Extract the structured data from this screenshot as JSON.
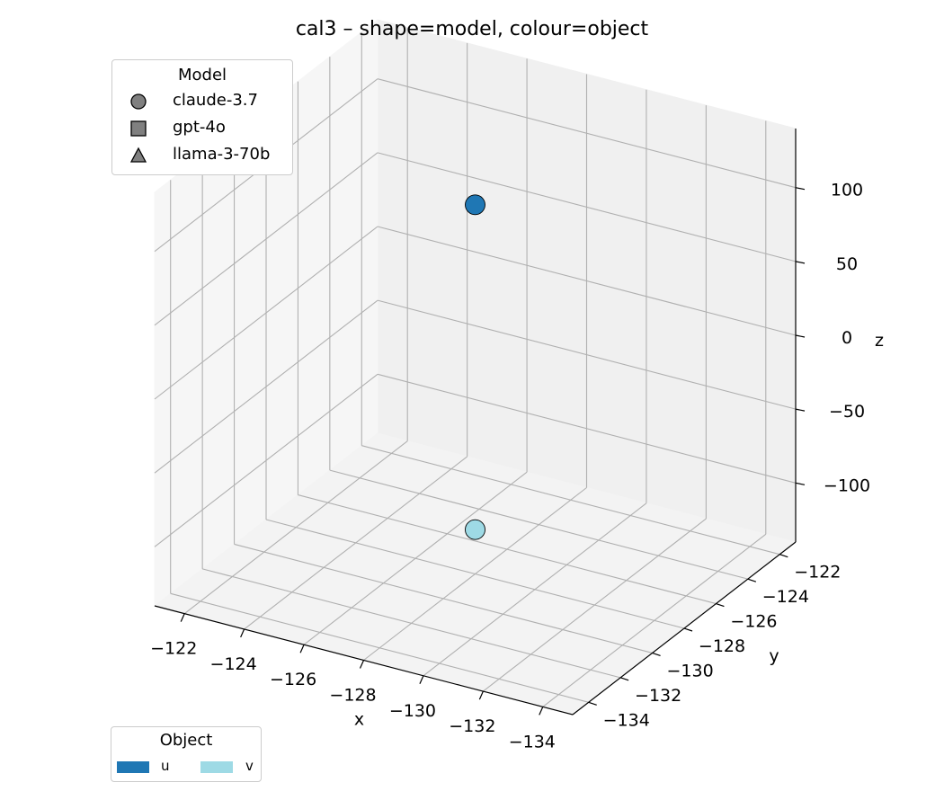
{
  "title": "cal3 – shape=model, colour=object",
  "model_legend": {
    "title": "Model",
    "items": [
      {
        "label": "claude-3.7",
        "marker": "circle"
      },
      {
        "label": "gpt-4o",
        "marker": "square"
      },
      {
        "label": "llama-3-70b",
        "marker": "triangle"
      }
    ]
  },
  "object_legend": {
    "title": "Object",
    "items": [
      {
        "label": "u",
        "color": "#1f77b4"
      },
      {
        "label": "v",
        "color": "#9edae5"
      }
    ]
  },
  "chart_data": {
    "type": "scatter",
    "projection": "3d",
    "title": "cal3 – shape=model, colour=object",
    "xlabel": "x",
    "ylabel": "y",
    "zlabel": "z",
    "xlim": [
      -135,
      -121
    ],
    "ylim": [
      -135,
      -121
    ],
    "zlim": [
      -140,
      140
    ],
    "xticks": [
      -134,
      -132,
      -130,
      -128,
      -126,
      -124,
      -122
    ],
    "yticks": [
      -134,
      -132,
      -130,
      -128,
      -126,
      -124,
      -122
    ],
    "zticks": [
      -100,
      -50,
      0,
      50,
      100
    ],
    "grid": true,
    "points": [
      {
        "x": -128,
        "y": -128,
        "z": 110,
        "model": "claude-3.7",
        "object": "u",
        "color": "#1f77b4"
      },
      {
        "x": -128,
        "y": -128,
        "z": -110,
        "model": "claude-3.7",
        "object": "v",
        "color": "#9edae5"
      }
    ]
  }
}
